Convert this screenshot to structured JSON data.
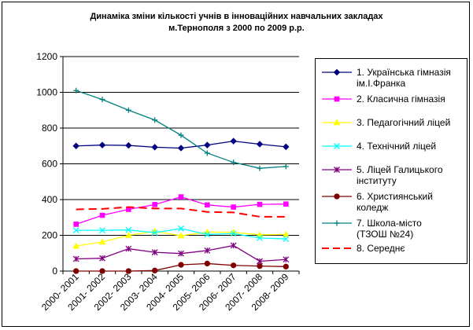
{
  "chart_data": {
    "type": "line",
    "title_line1": "Динаміка зміни кількості учнів в інноваційних навчальних закладах",
    "title_line2": "м.Тернополя з 2000 по 2009 р.р.",
    "xlabel": "",
    "ylabel": "",
    "ylim": [
      0,
      1200
    ],
    "yticks": [
      0,
      200,
      400,
      600,
      800,
      1000,
      1200
    ],
    "grid": "horizontal",
    "legend_position": "right",
    "categories": [
      "2000- 2001",
      "2001- 2002",
      "2002- 2003",
      "2003- 2004",
      "2004- 2005",
      "2005- 2006",
      "2006- 2007",
      "2007- 2008",
      "2008- 2009"
    ],
    "series": [
      {
        "name": "1. Українська гімназія\nім.І.Франка",
        "color": "#000080",
        "marker": "diamond",
        "dash": "",
        "values": [
          700,
          705,
          703,
          693,
          688,
          705,
          727,
          710,
          695
        ]
      },
      {
        "name": "2. Класична гімназія",
        "color": "#ff00ff",
        "marker": "square",
        "dash": "",
        "values": [
          262,
          312,
          345,
          372,
          415,
          370,
          358,
          373,
          375
        ]
      },
      {
        "name": "3. Педагогічний ліцей",
        "color": "#ffff00",
        "marker": "triangle",
        "dash": "",
        "values": [
          140,
          163,
          200,
          222,
          198,
          218,
          217,
          203,
          205
        ]
      },
      {
        "name": "4. Технічний ліцей",
        "color": "#00ffff",
        "marker": "x",
        "dash": "",
        "values": [
          228,
          228,
          230,
          215,
          238,
          205,
          210,
          185,
          180
        ]
      },
      {
        "name": "5. Ліцей Галицького\nінституту",
        "color": "#800080",
        "marker": "star",
        "dash": "",
        "values": [
          68,
          72,
          125,
          105,
          98,
          115,
          143,
          55,
          65
        ]
      },
      {
        "name": "6. Християнський\nколедж",
        "color": "#800000",
        "marker": "circle",
        "dash": "",
        "values": [
          0,
          0,
          0,
          3,
          35,
          42,
          32,
          28,
          25
        ]
      },
      {
        "name": "7. Школа-місто\n(ТЗОШ №24)",
        "color": "#008080",
        "marker": "plus",
        "dash": "",
        "values": [
          1010,
          960,
          900,
          845,
          760,
          660,
          608,
          575,
          585
        ]
      },
      {
        "name": "8. Середнє",
        "color": "#ff0000",
        "marker": "none",
        "dash": "10,6",
        "values": [
          345,
          348,
          358,
          350,
          350,
          331,
          328,
          304,
          304
        ]
      }
    ]
  }
}
